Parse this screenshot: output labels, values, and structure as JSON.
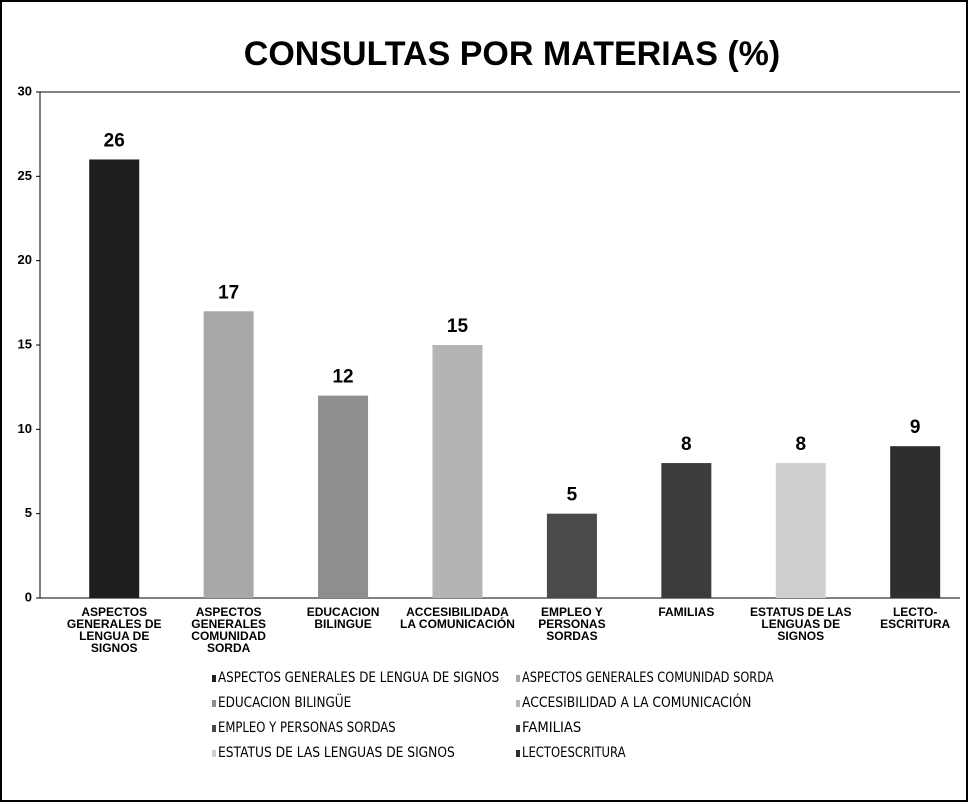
{
  "chart_data": {
    "type": "bar",
    "title": "CONSULTAS POR MATERIAS (%)",
    "categories": [
      [
        "ASPECTOS",
        "GENERALES DE",
        "LENGUA DE",
        "SIGNOS"
      ],
      [
        "ASPECTOS",
        "GENERALES",
        "COMUNIDAD",
        "SORDA"
      ],
      [
        "EDUCACION",
        "BILINGUE"
      ],
      [
        "ACCESIBILIDADA",
        "LA COMUNICACIÓN"
      ],
      [
        "EMPLEO Y",
        "PERSONAS",
        "SORDAS"
      ],
      [
        "FAMILIAS"
      ],
      [
        "ESTATUS DE LAS",
        "LENGUAS DE",
        "SIGNOS"
      ],
      [
        "LECTO-",
        "ESCRITURA"
      ]
    ],
    "values": [
      26,
      17,
      12,
      15,
      5,
      8,
      8,
      9
    ],
    "colors": [
      "#1e1e1e",
      "#a8a8a8",
      "#8e8e8e",
      "#b4b4b4",
      "#4a4a4a",
      "#3c3c3c",
      "#cfcfcf",
      "#2e2e2e"
    ],
    "legend": [
      "ASPECTOS GENERALES DE LENGUA DE SIGNOS",
      "ASPECTOS GENERALES COMUNIDAD SORDA",
      "EDUCACION BILINGÜE",
      "ACCESIBILIDAD A LA COMUNICACIÓN",
      "EMPLEO Y PERSONAS SORDAS",
      "FAMILIAS",
      "ESTATUS DE LAS LENGUAS DE SIGNOS",
      "LECTOESCRITURA"
    ],
    "ylim": [
      0,
      30
    ],
    "yticks": [
      0,
      5,
      10,
      15,
      20,
      25,
      30
    ]
  }
}
